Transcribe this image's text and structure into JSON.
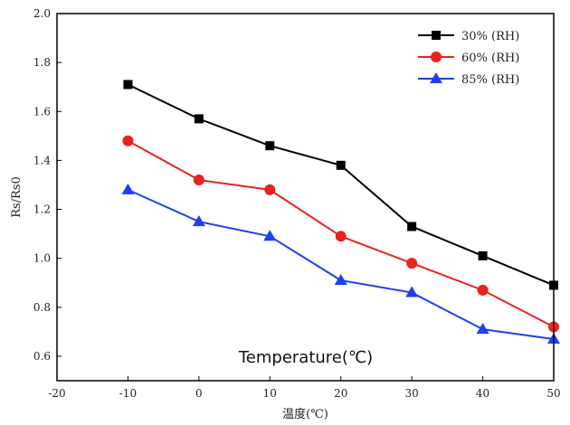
{
  "chart_data": {
    "type": "line",
    "x": [
      -10,
      0,
      10,
      20,
      30,
      40,
      50
    ],
    "series": [
      {
        "name": "30% (RH)",
        "color": "#000000",
        "marker": "square",
        "values": [
          1.71,
          1.57,
          1.46,
          1.38,
          1.13,
          1.01,
          0.89
        ]
      },
      {
        "name": "60% (RH)",
        "color": "#e8231e",
        "marker": "circle",
        "values": [
          1.48,
          1.32,
          1.28,
          1.09,
          0.98,
          0.87,
          0.72
        ]
      },
      {
        "name": "85% (RH)",
        "color": "#1f3ff0",
        "marker": "triangle",
        "values": [
          1.28,
          1.15,
          1.09,
          0.91,
          0.86,
          0.71,
          0.67
        ]
      }
    ],
    "xlabel": "温度(℃)",
    "ylabel": "Rs/Rs0",
    "xlim": [
      -20,
      50
    ],
    "ylim": [
      0.5,
      2.0
    ],
    "xticks": [
      -20,
      -10,
      0,
      10,
      20,
      30,
      40,
      50
    ],
    "yticks": [
      0.6,
      0.8,
      1.0,
      1.2,
      1.4,
      1.6,
      1.8,
      2.0
    ],
    "ytick_labels": [
      "0.6",
      "0.8",
      "1.0",
      "1.2",
      "1.4",
      "1.6",
      "1.8",
      "2.0"
    ],
    "grid": false,
    "legend_position": "top-right",
    "annotation": "Temperature(℃)"
  }
}
